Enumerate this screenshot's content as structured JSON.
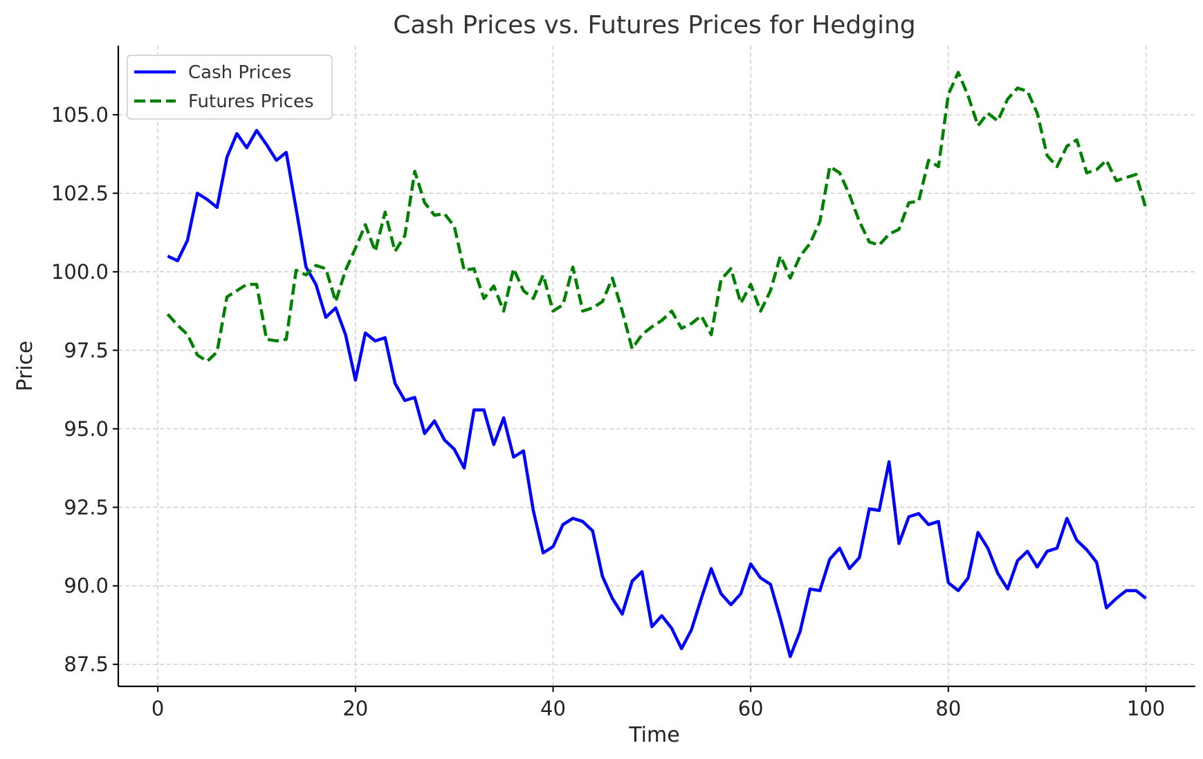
{
  "chart_data": {
    "type": "line",
    "title": "Cash Prices vs. Futures Prices for Hedging",
    "xlabel": "Time",
    "ylabel": "Price",
    "xlim": [
      -4,
      105
    ],
    "ylim": [
      86.8,
      107.2
    ],
    "xticks": [
      0,
      20,
      40,
      60,
      80,
      100
    ],
    "xtick_labels": [
      "0",
      "20",
      "40",
      "60",
      "80",
      "100"
    ],
    "yticks": [
      87.5,
      90.0,
      92.5,
      95.0,
      97.5,
      100.0,
      102.5,
      105.0
    ],
    "ytick_labels": [
      "87.5",
      "90.0",
      "92.5",
      "95.0",
      "97.5",
      "100.0",
      "102.5",
      "105.0"
    ],
    "grid": true,
    "legend_position": "top-left",
    "x": [
      1,
      2,
      3,
      4,
      5,
      6,
      7,
      8,
      9,
      10,
      11,
      12,
      13,
      14,
      15,
      16,
      17,
      18,
      19,
      20,
      21,
      22,
      23,
      24,
      25,
      26,
      27,
      28,
      29,
      30,
      31,
      32,
      33,
      34,
      35,
      36,
      37,
      38,
      39,
      40,
      41,
      42,
      43,
      44,
      45,
      46,
      47,
      48,
      49,
      50,
      51,
      52,
      53,
      54,
      55,
      56,
      57,
      58,
      59,
      60,
      61,
      62,
      63,
      64,
      65,
      66,
      67,
      68,
      69,
      70,
      71,
      72,
      73,
      74,
      75,
      76,
      77,
      78,
      79,
      80,
      81,
      82,
      83,
      84,
      85,
      86,
      87,
      88,
      89,
      90,
      91,
      92,
      93,
      94,
      95,
      96,
      97,
      98,
      99,
      100
    ],
    "series": [
      {
        "name": "Cash Prices",
        "color": "#0000ff",
        "style": "solid",
        "values": [
          100.5,
          100.35,
          101.0,
          102.5,
          102.3,
          102.05,
          103.65,
          104.4,
          103.95,
          104.5,
          104.05,
          103.55,
          103.8,
          102.0,
          100.15,
          99.6,
          98.55,
          98.85,
          98.0,
          96.55,
          98.05,
          97.8,
          97.9,
          96.45,
          95.9,
          96.0,
          94.85,
          95.25,
          94.65,
          94.35,
          93.75,
          95.6,
          95.6,
          94.5,
          95.35,
          94.1,
          94.3,
          92.4,
          91.05,
          91.25,
          91.95,
          92.15,
          92.05,
          91.75,
          90.3,
          89.6,
          89.1,
          90.15,
          90.45,
          88.7,
          89.05,
          88.65,
          88.0,
          88.6,
          89.6,
          90.55,
          89.75,
          89.4,
          89.75,
          90.7,
          90.25,
          90.05,
          88.95,
          87.75,
          88.55,
          89.9,
          89.85,
          90.85,
          91.2,
          90.55,
          90.9,
          92.45,
          92.4,
          93.95,
          91.35,
          92.2,
          92.3,
          91.95,
          92.05,
          90.1,
          89.85,
          90.25,
          91.7,
          91.2,
          90.4,
          89.9,
          90.8,
          91.1,
          90.6,
          91.1,
          91.2,
          92.15,
          91.45,
          91.15,
          90.75,
          89.3,
          89.6,
          89.85,
          89.85,
          89.6
        ]
      },
      {
        "name": "Futures Prices",
        "color": "#008000",
        "style": "dashed",
        "values": [
          98.65,
          98.3,
          98.0,
          97.35,
          97.15,
          97.45,
          99.2,
          99.4,
          99.6,
          99.6,
          97.85,
          97.8,
          97.85,
          100.05,
          99.9,
          100.2,
          100.1,
          99.05,
          100.05,
          100.75,
          101.5,
          100.65,
          101.9,
          100.65,
          101.15,
          103.2,
          102.2,
          101.8,
          101.85,
          101.45,
          100.05,
          100.1,
          99.15,
          99.55,
          98.75,
          100.1,
          99.4,
          99.15,
          99.9,
          98.75,
          98.95,
          100.15,
          98.75,
          98.85,
          99.05,
          99.8,
          98.75,
          97.55,
          98.0,
          98.25,
          98.45,
          98.75,
          98.2,
          98.35,
          98.6,
          98.0,
          99.75,
          100.1,
          99.0,
          99.6,
          98.75,
          99.4,
          100.5,
          99.8,
          100.5,
          100.9,
          101.6,
          103.35,
          103.15,
          102.45,
          101.6,
          100.95,
          100.85,
          101.2,
          101.35,
          102.2,
          102.25,
          103.55,
          103.35,
          105.65,
          106.35,
          105.6,
          104.65,
          105.05,
          104.8,
          105.5,
          105.85,
          105.75,
          105.05,
          103.7,
          103.35,
          104.0,
          104.2,
          103.15,
          103.25,
          103.55,
          102.9,
          103.0,
          103.1,
          102.0
        ]
      }
    ]
  }
}
